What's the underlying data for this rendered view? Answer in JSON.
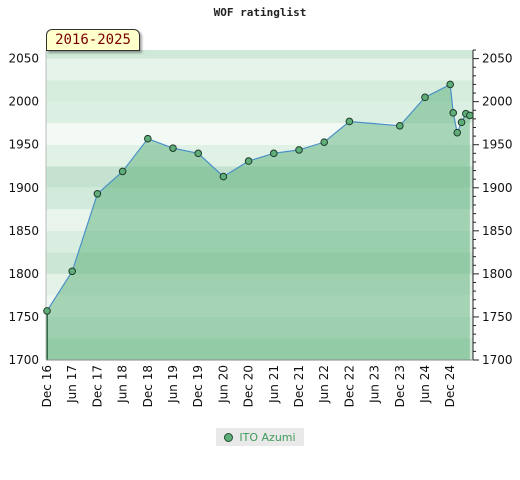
{
  "chart_data": {
    "type": "area",
    "title": "WOF ratinglist",
    "period": "2016-2025",
    "ylim": [
      1700,
      2060
    ],
    "yticks": [
      1700,
      1750,
      1800,
      1850,
      1900,
      1950,
      2000,
      2050
    ],
    "xtick_labels": [
      "Dec 16",
      "Jun 17",
      "Dec 17",
      "Jun 18",
      "Dec 18",
      "Jun 19",
      "Dec 19",
      "Jun 20",
      "Dec 20",
      "Jun 21",
      "Dec 21",
      "Jun 22",
      "Dec 22",
      "Jun 23",
      "Dec 23",
      "Jun 24",
      "Dec 24"
    ],
    "grid": true,
    "legend_position": "bottom-center",
    "series": [
      {
        "name": "ITO Azumi",
        "color": "#5fae7a",
        "line_color": "#4a90c8",
        "points": [
          {
            "t": 0,
            "y": 1757
          },
          {
            "t": 1,
            "y": 1803
          },
          {
            "t": 2,
            "y": 1893
          },
          {
            "t": 3,
            "y": 1919
          },
          {
            "t": 4,
            "y": 1957
          },
          {
            "t": 5,
            "y": 1946
          },
          {
            "t": 6,
            "y": 1940
          },
          {
            "t": 7,
            "y": 1913
          },
          {
            "t": 8,
            "y": 1931
          },
          {
            "t": 9,
            "y": 1940
          },
          {
            "t": 10,
            "y": 1944
          },
          {
            "t": 11,
            "y": 1953
          },
          {
            "t": 12,
            "y": 1977
          },
          {
            "t": 14,
            "y": 1972
          },
          {
            "t": 15,
            "y": 2005
          },
          {
            "t": 16,
            "y": 2020
          },
          {
            "t": 16.12,
            "y": 1987
          },
          {
            "t": 16.28,
            "y": 1964
          },
          {
            "t": 16.45,
            "y": 1976
          },
          {
            "t": 16.62,
            "y": 1986
          },
          {
            "t": 16.78,
            "y": 1984
          }
        ]
      }
    ]
  }
}
